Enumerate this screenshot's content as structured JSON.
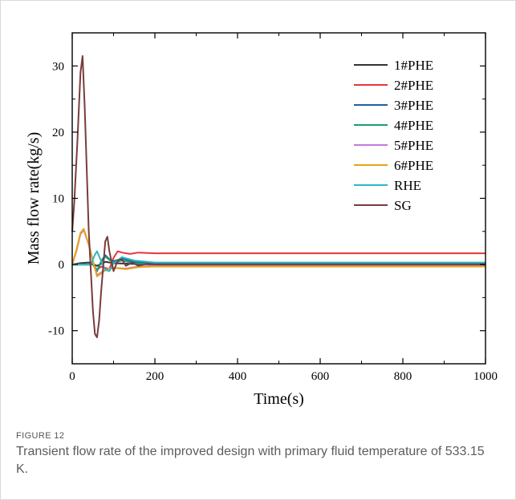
{
  "figure": {
    "label": "FIGURE 12",
    "caption": "Transient flow rate of the improved design with primary fluid temperature of 533.15 K."
  },
  "chart_data": {
    "type": "line",
    "title": "",
    "xlabel": "Time(s)",
    "ylabel": "Mass flow rate(kg/s)",
    "xlim": [
      0,
      1000
    ],
    "ylim": [
      -15,
      35
    ],
    "xticks": [
      0,
      200,
      400,
      600,
      800,
      1000
    ],
    "yticks": [
      -10,
      0,
      10,
      20,
      30
    ],
    "grid": false,
    "legend_position": "top-right",
    "series": [
      {
        "name": "1#PHE",
        "color": "#333333",
        "x": [
          0,
          20,
          40,
          60,
          80,
          100,
          140,
          200,
          1000
        ],
        "y": [
          0,
          0.2,
          0.3,
          -0.2,
          0.4,
          0.2,
          0.1,
          0,
          0
        ]
      },
      {
        "name": "2#PHE",
        "color": "#e8353a",
        "x": [
          0,
          50,
          60,
          70,
          90,
          100,
          110,
          120,
          140,
          160,
          200,
          300,
          1000
        ],
        "y": [
          0,
          0,
          -0.8,
          -0.3,
          -0.7,
          1.0,
          2.0,
          1.8,
          1.6,
          1.8,
          1.7,
          1.7,
          1.7
        ]
      },
      {
        "name": "3#PHE",
        "color": "#1f5fa8",
        "x": [
          0,
          50,
          60,
          70,
          80,
          90,
          100,
          120,
          150,
          200,
          300,
          1000
        ],
        "y": [
          0,
          0,
          -1.0,
          0.5,
          1.4,
          0.8,
          0.5,
          0.9,
          0.4,
          0.2,
          0.1,
          0.1
        ]
      },
      {
        "name": "4#PHE",
        "color": "#1a9e6e",
        "x": [
          0,
          50,
          60,
          70,
          80,
          90,
          100,
          120,
          150,
          200,
          1000
        ],
        "y": [
          0,
          0,
          -0.9,
          0.3,
          1.2,
          0.7,
          0.3,
          0.6,
          0.2,
          0,
          0
        ]
      },
      {
        "name": "5#PHE",
        "color": "#c47ad8",
        "x": [
          0,
          10,
          20,
          28,
          40,
          50,
          60,
          80,
          100,
          130,
          160,
          200,
          1000
        ],
        "y": [
          0,
          2.0,
          4.6,
          5.2,
          3.0,
          0.5,
          -1.6,
          -0.8,
          -0.5,
          -0.6,
          -0.3,
          -0.2,
          -0.2
        ]
      },
      {
        "name": "6#PHE",
        "color": "#e8a317",
        "x": [
          0,
          10,
          20,
          28,
          40,
          50,
          60,
          80,
          100,
          130,
          160,
          200,
          1000
        ],
        "y": [
          0,
          2.2,
          4.8,
          5.4,
          3.0,
          0.6,
          -1.8,
          -0.9,
          -0.5,
          -0.7,
          -0.4,
          -0.3,
          -0.3
        ]
      },
      {
        "name": "RHE",
        "color": "#2bb8c2",
        "x": [
          0,
          45,
          55,
          60,
          70,
          80,
          90,
          100,
          120,
          150,
          200,
          300,
          1000
        ],
        "y": [
          0,
          0,
          1.5,
          2.0,
          0.5,
          -0.8,
          -1.0,
          0.2,
          1.1,
          0.6,
          0.3,
          0.3,
          0.3
        ]
      },
      {
        "name": "SG",
        "color": "#7b3b3b",
        "x": [
          0,
          5,
          12,
          20,
          25,
          30,
          40,
          50,
          55,
          60,
          65,
          70,
          80,
          85,
          90,
          100,
          110,
          120,
          130,
          145,
          160,
          180,
          200,
          240,
          1000
        ],
        "y": [
          5,
          9.5,
          18,
          29,
          31.5,
          24,
          5,
          -7,
          -10.5,
          -11,
          -8.5,
          -4,
          3.5,
          4.2,
          2,
          -1,
          0.6,
          0.8,
          -0.2,
          0.3,
          -0.2,
          0.1,
          0,
          0,
          0
        ]
      }
    ]
  }
}
